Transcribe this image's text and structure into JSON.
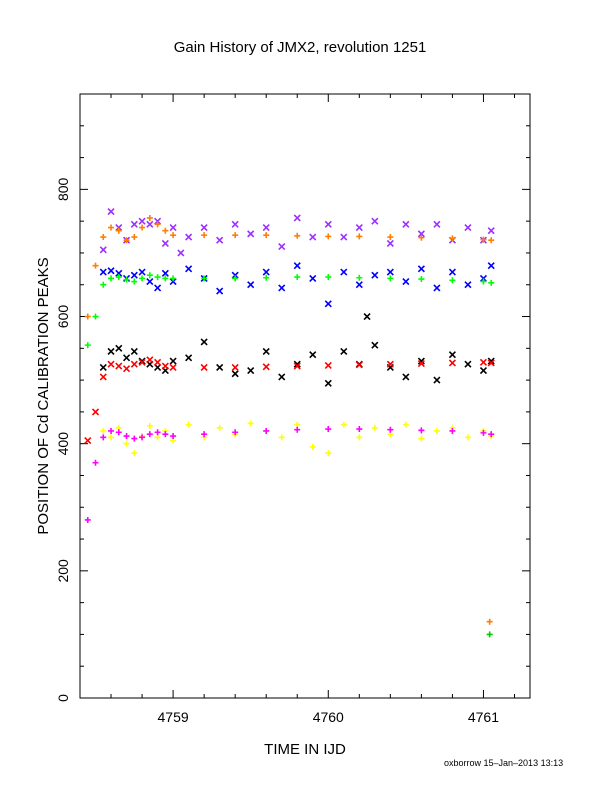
{
  "chart_data": {
    "type": "scatter",
    "title": "Gain History of JMX2, revolution 1251",
    "xlabel": "TIME IN IJD",
    "ylabel": "POSITION OF Cd CALIBRATION PEAKS",
    "xlim": [
      4758.4,
      4761.3
    ],
    "ylim": [
      0,
      950
    ],
    "xticks": [
      4759,
      4760,
      4761
    ],
    "xtick_labels": [
      "4759",
      "4760",
      "4761"
    ],
    "yticks": [
      0,
      200,
      400,
      600,
      800
    ],
    "ytick_labels": [
      "0",
      "200",
      "400",
      "600",
      "800"
    ],
    "grid": false,
    "series": [
      {
        "color": "#9b30ff",
        "marker": "x",
        "x": [
          4758.55,
          4758.6,
          4758.65,
          4758.7,
          4758.75,
          4758.8,
          4758.85,
          4758.9,
          4758.95,
          4759.0,
          4759.05,
          4759.1,
          4759.2,
          4759.3,
          4759.4,
          4759.5,
          4759.6,
          4759.7,
          4759.8,
          4759.9,
          4760.0,
          4760.1,
          4760.2,
          4760.3,
          4760.4,
          4760.5,
          4760.6,
          4760.7,
          4760.8,
          4760.9,
          4761.0,
          4761.05
        ],
        "y": [
          705,
          765,
          740,
          720,
          745,
          750,
          745,
          750,
          715,
          740,
          700,
          725,
          740,
          720,
          745,
          730,
          740,
          710,
          755,
          725,
          745,
          725,
          740,
          750,
          715,
          745,
          730,
          745,
          720,
          740,
          720,
          735
        ]
      },
      {
        "color": "#ff7f00",
        "marker": "+",
        "x": [
          4758.45,
          4758.5,
          4758.55,
          4758.6,
          4758.65,
          4758.7,
          4758.75,
          4758.8,
          4758.85,
          4758.9,
          4758.95,
          4759.0,
          4759.2,
          4759.4,
          4759.6,
          4759.8,
          4760.0,
          4760.2,
          4760.4,
          4760.6,
          4760.8,
          4761.0,
          4761.05
        ],
        "y": [
          600,
          680,
          725,
          740,
          735,
          720,
          725,
          740,
          755,
          745,
          735,
          728,
          728,
          728,
          728,
          727,
          726,
          726,
          725,
          724,
          723,
          721,
          720
        ]
      },
      {
        "color": "#0000ff",
        "marker": "x",
        "x": [
          4758.55,
          4758.6,
          4758.65,
          4758.7,
          4758.75,
          4758.8,
          4758.85,
          4758.9,
          4758.95,
          4759.0,
          4759.1,
          4759.2,
          4759.3,
          4759.4,
          4759.5,
          4759.6,
          4759.7,
          4759.8,
          4759.9,
          4760.0,
          4760.1,
          4760.2,
          4760.3,
          4760.4,
          4760.5,
          4760.6,
          4760.7,
          4760.8,
          4760.9,
          4761.0,
          4761.05
        ],
        "y": [
          670,
          672,
          668,
          660,
          665,
          670,
          655,
          645,
          668,
          655,
          675,
          660,
          640,
          665,
          650,
          670,
          645,
          680,
          660,
          620,
          670,
          650,
          665,
          670,
          655,
          675,
          645,
          670,
          650,
          660,
          680
        ]
      },
      {
        "color": "#00ff00",
        "marker": "+",
        "x": [
          4758.45,
          4758.5,
          4758.55,
          4758.6,
          4758.65,
          4758.7,
          4758.75,
          4758.8,
          4758.85,
          4758.9,
          4758.95,
          4759.0,
          4759.2,
          4759.4,
          4759.6,
          4759.8,
          4760.0,
          4760.2,
          4760.4,
          4760.6,
          4760.8,
          4761.0,
          4761.05
        ],
        "y": [
          555,
          600,
          650,
          660,
          662,
          658,
          655,
          660,
          665,
          662,
          660,
          660,
          660,
          660,
          661,
          662,
          662,
          661,
          660,
          659,
          657,
          655,
          653
        ]
      },
      {
        "color": "#000000",
        "marker": "x",
        "x": [
          4758.55,
          4758.6,
          4758.65,
          4758.7,
          4758.75,
          4758.8,
          4758.85,
          4758.9,
          4758.95,
          4759.0,
          4759.1,
          4759.2,
          4759.3,
          4759.4,
          4759.5,
          4759.6,
          4759.7,
          4759.8,
          4759.9,
          4760.0,
          4760.1,
          4760.2,
          4760.25,
          4760.3,
          4760.4,
          4760.5,
          4760.6,
          4760.7,
          4760.8,
          4760.9,
          4761.0,
          4761.05
        ],
        "y": [
          520,
          545,
          550,
          535,
          545,
          530,
          525,
          520,
          515,
          530,
          535,
          560,
          520,
          510,
          515,
          545,
          505,
          525,
          540,
          495,
          545,
          525,
          600,
          555,
          520,
          505,
          530,
          500,
          540,
          525,
          515,
          530
        ]
      },
      {
        "color": "#ff0000",
        "marker": "x",
        "x": [
          4758.45,
          4758.5,
          4758.55,
          4758.6,
          4758.65,
          4758.7,
          4758.75,
          4758.8,
          4758.85,
          4758.9,
          4758.95,
          4759.0,
          4759.2,
          4759.4,
          4759.6,
          4759.8,
          4760.0,
          4760.2,
          4760.4,
          4760.6,
          4760.8,
          4761.0,
          4761.05
        ],
        "y": [
          405,
          450,
          505,
          525,
          522,
          518,
          525,
          528,
          532,
          528,
          522,
          520,
          520,
          520,
          521,
          522,
          523,
          524,
          525,
          526,
          527,
          528,
          527
        ]
      },
      {
        "color": "#ffff00",
        "marker": "+",
        "x": [
          4758.55,
          4758.6,
          4758.65,
          4758.7,
          4758.75,
          4758.8,
          4758.85,
          4758.9,
          4758.95,
          4759.0,
          4759.1,
          4759.2,
          4759.3,
          4759.4,
          4759.5,
          4759.6,
          4759.7,
          4759.8,
          4759.9,
          4760.0,
          4760.1,
          4760.2,
          4760.3,
          4760.4,
          4760.5,
          4760.6,
          4760.7,
          4760.8,
          4760.9,
          4761.0,
          4761.05
        ],
        "y": [
          420,
          410,
          425,
          400,
          385,
          412,
          428,
          410,
          420,
          405,
          430,
          410,
          425,
          415,
          432,
          420,
          410,
          430,
          395,
          385,
          430,
          410,
          425,
          415,
          430,
          408,
          420,
          425,
          410,
          420,
          412
        ]
      },
      {
        "color": "#ff00ff",
        "marker": "+",
        "x": [
          4758.45,
          4758.5,
          4758.55,
          4758.6,
          4758.65,
          4758.7,
          4758.75,
          4758.8,
          4758.85,
          4758.9,
          4758.95,
          4759.0,
          4759.2,
          4759.4,
          4759.6,
          4759.8,
          4760.0,
          4760.2,
          4760.4,
          4760.6,
          4760.8,
          4761.0,
          4761.05
        ],
        "y": [
          280,
          370,
          410,
          420,
          418,
          412,
          408,
          410,
          415,
          418,
          415,
          412,
          415,
          418,
          420,
          422,
          423,
          423,
          422,
          421,
          420,
          417,
          415
        ]
      },
      {
        "color": "#ff7f00",
        "marker": "+",
        "x": [
          4761.04
        ],
        "y": [
          120
        ]
      },
      {
        "color": "#00cc00",
        "marker": "+",
        "x": [
          4761.04
        ],
        "y": [
          100
        ]
      }
    ]
  },
  "footer_text": "oxborrow 15–Jan–2013 13:13"
}
